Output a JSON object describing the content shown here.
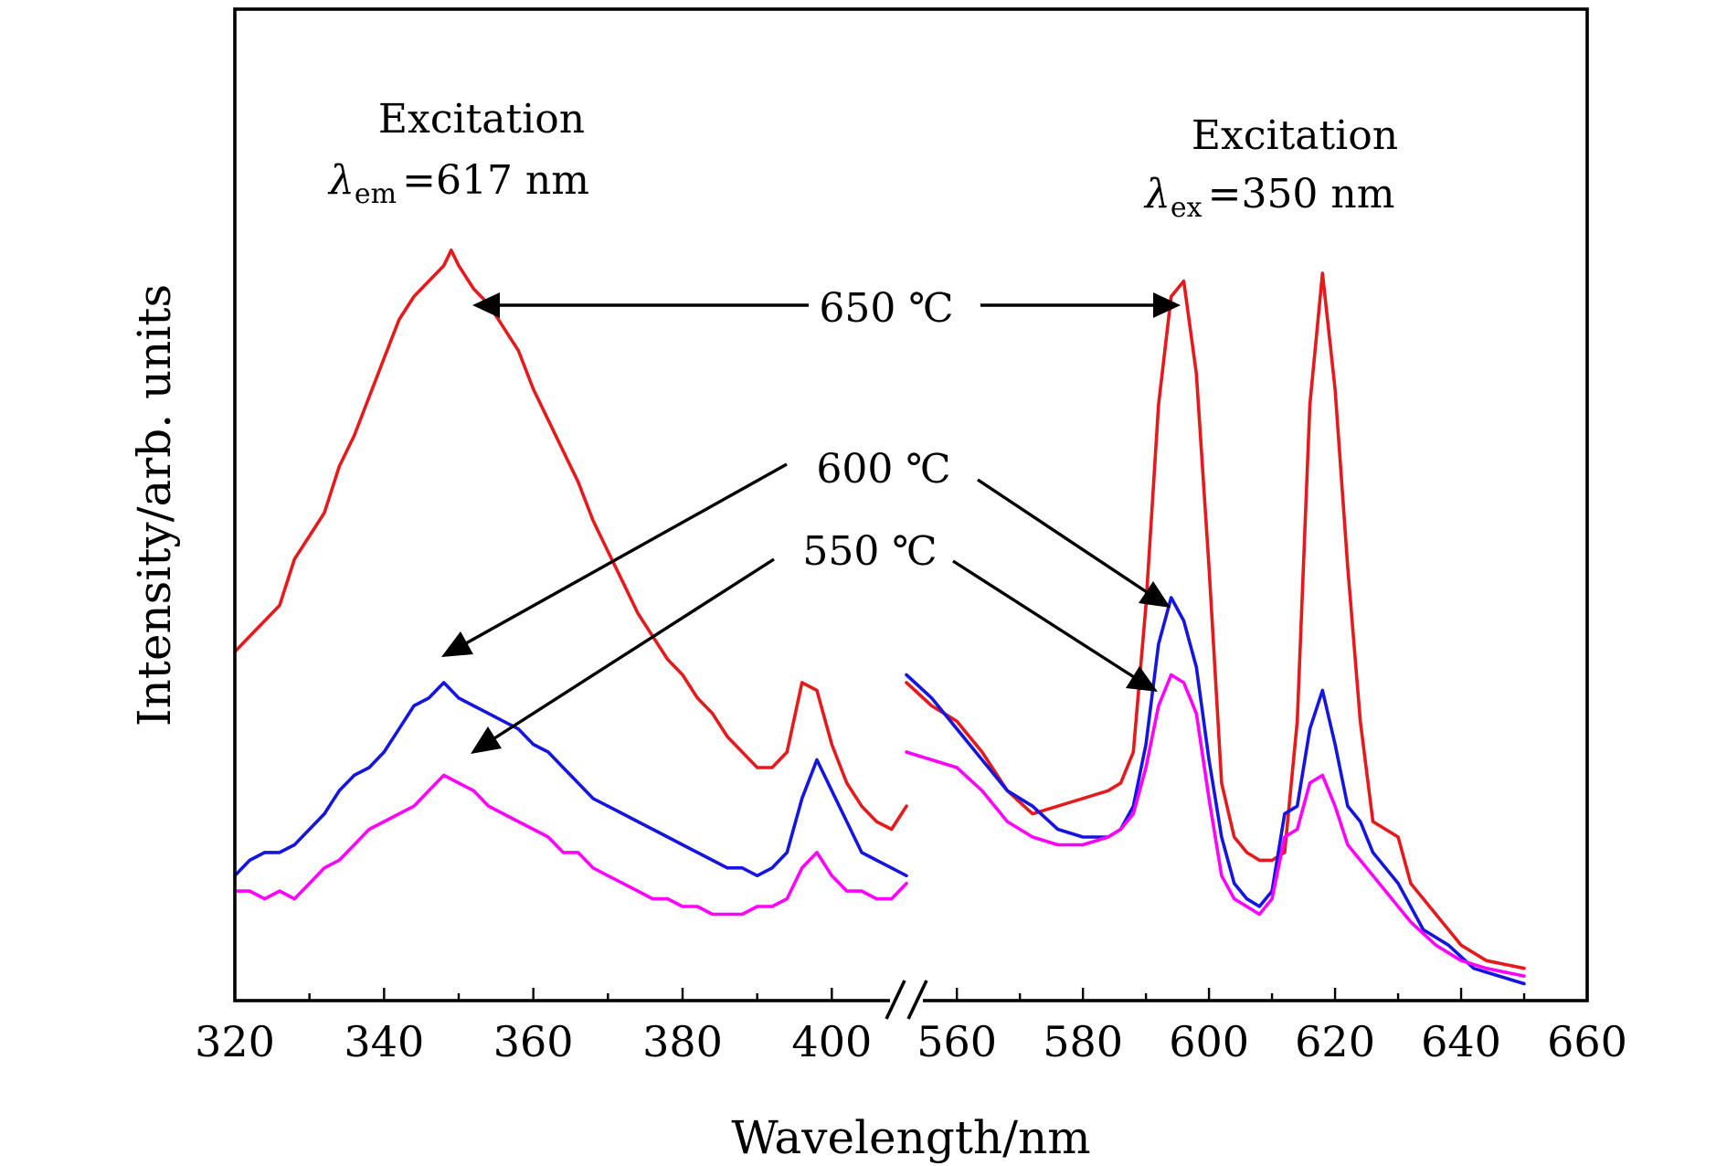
{
  "chart_data": {
    "type": "line",
    "xlabel": "Wavelength/nm",
    "ylabel": "Intensity/arb. units",
    "axis_break": [
      410,
      552
    ],
    "xlim_left": [
      320,
      410
    ],
    "xlim_right": [
      552,
      660
    ],
    "xticks_left": [
      320,
      340,
      360,
      380,
      400
    ],
    "xticks_right": [
      560,
      580,
      600,
      620,
      640,
      660
    ],
    "ylim": [
      0,
      100
    ],
    "grid": false,
    "legend": "none",
    "annotations": {
      "left_title": "Excitation",
      "left_sub_symbol": "λ",
      "left_sub_index": "em",
      "left_sub_value": "=617 nm",
      "right_title": "Excitation",
      "right_sub_symbol": "λ",
      "right_sub_index": "ex",
      "right_sub_value": "=350 nm",
      "label_650": "650 ℃",
      "label_600": "600 ℃",
      "label_550": "550 ℃"
    },
    "series": [
      {
        "color": "#e41a1c",
        "left": [
          [
            320,
            44
          ],
          [
            322,
            46
          ],
          [
            324,
            48
          ],
          [
            326,
            50
          ],
          [
            328,
            56
          ],
          [
            330,
            59
          ],
          [
            332,
            62
          ],
          [
            334,
            68
          ],
          [
            336,
            72
          ],
          [
            338,
            77
          ],
          [
            340,
            82
          ],
          [
            342,
            87
          ],
          [
            344,
            90
          ],
          [
            346,
            92
          ],
          [
            348,
            94
          ],
          [
            349,
            96
          ],
          [
            350,
            94
          ],
          [
            352,
            91
          ],
          [
            354,
            89
          ],
          [
            356,
            86
          ],
          [
            358,
            83
          ],
          [
            360,
            78
          ],
          [
            362,
            74
          ],
          [
            364,
            70
          ],
          [
            366,
            66
          ],
          [
            368,
            61
          ],
          [
            370,
            57
          ],
          [
            372,
            53
          ],
          [
            374,
            49
          ],
          [
            376,
            46
          ],
          [
            378,
            43
          ],
          [
            380,
            41
          ],
          [
            382,
            38
          ],
          [
            384,
            36
          ],
          [
            386,
            33
          ],
          [
            388,
            31
          ],
          [
            390,
            29
          ],
          [
            392,
            29
          ],
          [
            394,
            31
          ],
          [
            396,
            40
          ],
          [
            398,
            39
          ],
          [
            400,
            32
          ],
          [
            402,
            27
          ],
          [
            404,
            24
          ],
          [
            406,
            22
          ],
          [
            408,
            21
          ],
          [
            410,
            24
          ]
        ],
        "right": [
          [
            552,
            40
          ],
          [
            556,
            37
          ],
          [
            560,
            35
          ],
          [
            564,
            31
          ],
          [
            568,
            26
          ],
          [
            572,
            23
          ],
          [
            576,
            24
          ],
          [
            580,
            25
          ],
          [
            584,
            26
          ],
          [
            586,
            27
          ],
          [
            588,
            31
          ],
          [
            590,
            50
          ],
          [
            592,
            76
          ],
          [
            594,
            90
          ],
          [
            596,
            92
          ],
          [
            598,
            80
          ],
          [
            600,
            55
          ],
          [
            602,
            27
          ],
          [
            604,
            20
          ],
          [
            606,
            18
          ],
          [
            608,
            17
          ],
          [
            610,
            17
          ],
          [
            612,
            18
          ],
          [
            614,
            35
          ],
          [
            616,
            76
          ],
          [
            618,
            93
          ],
          [
            620,
            78
          ],
          [
            622,
            55
          ],
          [
            624,
            35
          ],
          [
            626,
            22
          ],
          [
            628,
            21
          ],
          [
            630,
            20
          ],
          [
            632,
            14
          ],
          [
            636,
            10
          ],
          [
            640,
            6
          ],
          [
            644,
            4
          ],
          [
            650,
            3
          ]
        ]
      },
      {
        "color": "#1515e0",
        "left": [
          [
            320,
            15
          ],
          [
            322,
            17
          ],
          [
            324,
            18
          ],
          [
            326,
            18
          ],
          [
            328,
            19
          ],
          [
            330,
            21
          ],
          [
            332,
            23
          ],
          [
            334,
            26
          ],
          [
            336,
            28
          ],
          [
            338,
            29
          ],
          [
            340,
            31
          ],
          [
            342,
            34
          ],
          [
            344,
            37
          ],
          [
            346,
            38
          ],
          [
            348,
            40
          ],
          [
            350,
            38
          ],
          [
            352,
            37
          ],
          [
            354,
            36
          ],
          [
            356,
            35
          ],
          [
            358,
            34
          ],
          [
            360,
            32
          ],
          [
            362,
            31
          ],
          [
            364,
            29
          ],
          [
            366,
            27
          ],
          [
            368,
            25
          ],
          [
            370,
            24
          ],
          [
            372,
            23
          ],
          [
            374,
            22
          ],
          [
            376,
            21
          ],
          [
            378,
            20
          ],
          [
            380,
            19
          ],
          [
            382,
            18
          ],
          [
            384,
            17
          ],
          [
            386,
            16
          ],
          [
            388,
            16
          ],
          [
            390,
            15
          ],
          [
            392,
            16
          ],
          [
            394,
            18
          ],
          [
            396,
            25
          ],
          [
            398,
            30
          ],
          [
            400,
            26
          ],
          [
            402,
            22
          ],
          [
            404,
            18
          ],
          [
            406,
            17
          ],
          [
            408,
            16
          ],
          [
            410,
            15
          ]
        ],
        "right": [
          [
            552,
            41
          ],
          [
            556,
            38
          ],
          [
            560,
            34
          ],
          [
            564,
            30
          ],
          [
            568,
            26
          ],
          [
            572,
            24
          ],
          [
            576,
            21
          ],
          [
            580,
            20
          ],
          [
            584,
            20
          ],
          [
            586,
            21
          ],
          [
            588,
            24
          ],
          [
            590,
            32
          ],
          [
            592,
            45
          ],
          [
            594,
            51
          ],
          [
            596,
            48
          ],
          [
            598,
            42
          ],
          [
            600,
            30
          ],
          [
            602,
            20
          ],
          [
            604,
            14
          ],
          [
            606,
            12
          ],
          [
            608,
            11
          ],
          [
            610,
            13
          ],
          [
            612,
            23
          ],
          [
            614,
            24
          ],
          [
            616,
            34
          ],
          [
            618,
            39
          ],
          [
            620,
            32
          ],
          [
            622,
            24
          ],
          [
            624,
            22
          ],
          [
            626,
            18
          ],
          [
            630,
            14
          ],
          [
            634,
            8
          ],
          [
            638,
            6
          ],
          [
            642,
            3
          ],
          [
            646,
            2
          ],
          [
            650,
            1
          ]
        ]
      },
      {
        "color": "#ff00ff",
        "left": [
          [
            320,
            13
          ],
          [
            322,
            13
          ],
          [
            324,
            12
          ],
          [
            326,
            13
          ],
          [
            328,
            12
          ],
          [
            330,
            14
          ],
          [
            332,
            16
          ],
          [
            334,
            17
          ],
          [
            336,
            19
          ],
          [
            338,
            21
          ],
          [
            340,
            22
          ],
          [
            342,
            23
          ],
          [
            344,
            24
          ],
          [
            346,
            26
          ],
          [
            348,
            28
          ],
          [
            350,
            27
          ],
          [
            352,
            26
          ],
          [
            354,
            24
          ],
          [
            356,
            23
          ],
          [
            358,
            22
          ],
          [
            360,
            21
          ],
          [
            362,
            20
          ],
          [
            364,
            18
          ],
          [
            366,
            18
          ],
          [
            368,
            16
          ],
          [
            370,
            15
          ],
          [
            372,
            14
          ],
          [
            374,
            13
          ],
          [
            376,
            12
          ],
          [
            378,
            12
          ],
          [
            380,
            11
          ],
          [
            382,
            11
          ],
          [
            384,
            10
          ],
          [
            386,
            10
          ],
          [
            388,
            10
          ],
          [
            390,
            11
          ],
          [
            392,
            11
          ],
          [
            394,
            12
          ],
          [
            396,
            16
          ],
          [
            398,
            18
          ],
          [
            400,
            15
          ],
          [
            402,
            13
          ],
          [
            404,
            13
          ],
          [
            406,
            12
          ],
          [
            408,
            12
          ],
          [
            410,
            14
          ]
        ],
        "right": [
          [
            552,
            31
          ],
          [
            556,
            30
          ],
          [
            560,
            29
          ],
          [
            564,
            26
          ],
          [
            568,
            22
          ],
          [
            572,
            20
          ],
          [
            576,
            19
          ],
          [
            580,
            19
          ],
          [
            584,
            20
          ],
          [
            586,
            21
          ],
          [
            588,
            23
          ],
          [
            590,
            29
          ],
          [
            592,
            37
          ],
          [
            594,
            41
          ],
          [
            596,
            40
          ],
          [
            598,
            36
          ],
          [
            600,
            25
          ],
          [
            602,
            15
          ],
          [
            604,
            12
          ],
          [
            606,
            11
          ],
          [
            608,
            10
          ],
          [
            610,
            12
          ],
          [
            612,
            20
          ],
          [
            614,
            21
          ],
          [
            616,
            27
          ],
          [
            618,
            28
          ],
          [
            620,
            24
          ],
          [
            622,
            19
          ],
          [
            624,
            17
          ],
          [
            628,
            13
          ],
          [
            632,
            9
          ],
          [
            636,
            6
          ],
          [
            640,
            4
          ],
          [
            644,
            3
          ],
          [
            650,
            2
          ]
        ]
      }
    ]
  }
}
